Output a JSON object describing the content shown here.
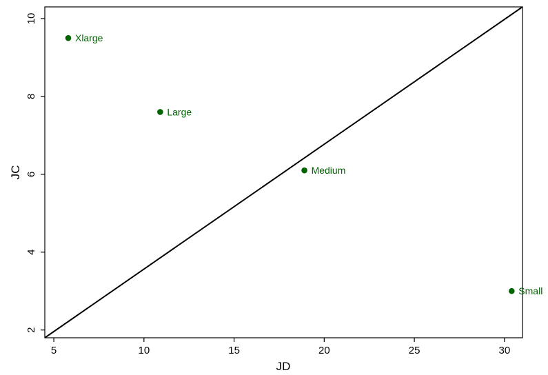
{
  "chart_data": {
    "type": "scatter",
    "title": "",
    "xlabel": "JD",
    "ylabel": "JC",
    "xlim": [
      4.5,
      31
    ],
    "ylim": [
      1.8,
      10.3
    ],
    "xticks": [
      5,
      10,
      15,
      20,
      25,
      30
    ],
    "yticks": [
      2,
      4,
      6,
      8,
      10
    ],
    "grid": false,
    "points": [
      {
        "label": "Xlarge",
        "x": 5.8,
        "y": 9.5
      },
      {
        "label": "Large",
        "x": 10.9,
        "y": 7.6
      },
      {
        "label": "Medium",
        "x": 18.9,
        "y": 6.1
      },
      {
        "label": "Small",
        "x": 30.4,
        "y": 3.0
      }
    ],
    "reference_line": {
      "x": [
        4.5,
        31
      ],
      "y": [
        1.8,
        10.3
      ]
    },
    "colors": {
      "points": "#006400",
      "line": "#000000"
    }
  }
}
